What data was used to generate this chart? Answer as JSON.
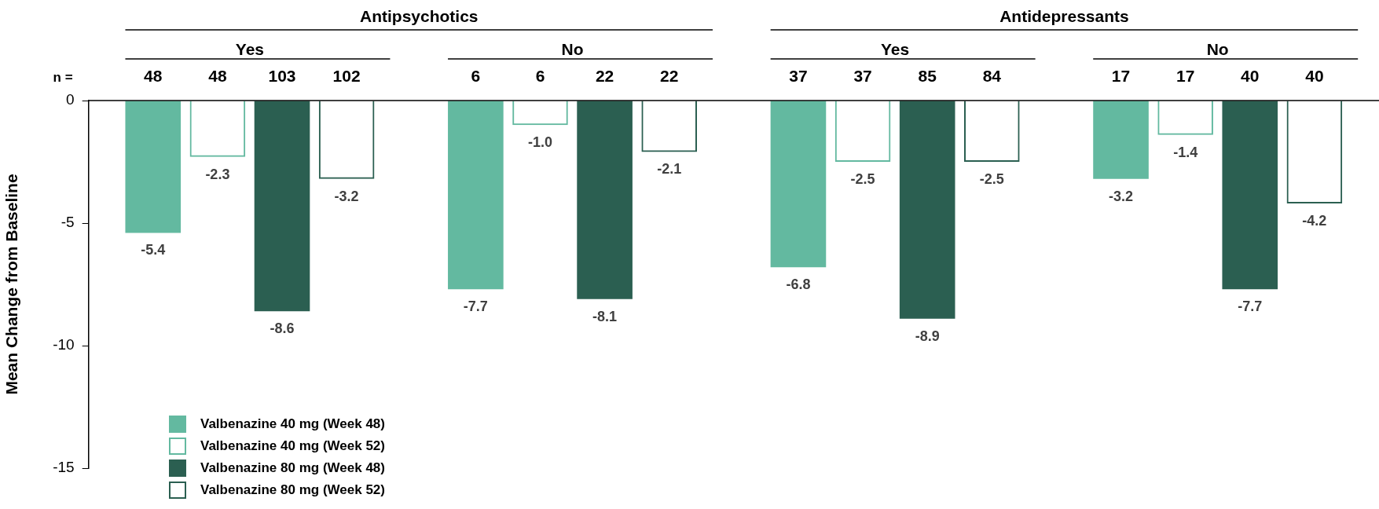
{
  "chart_data": {
    "type": "bar",
    "ylabel": "Mean Change from Baseline",
    "categories": [
      "Yes",
      "No",
      "Yes",
      "No"
    ],
    "series": [
      {
        "name": "Valbenazine 40 mg (Week 48)",
        "color": "#63b9a0",
        "values": [
          -5.4,
          -7.7,
          -6.8,
          -3.2
        ],
        "value_labels": [
          "-5.4",
          "-7.7",
          "-6.8",
          "-3.2"
        ]
      },
      {
        "name": "Valbenazine 40 mg (Week 52)",
        "color": "#63b9a0",
        "values": [
          -2.3,
          -1.0,
          -2.5,
          -1.4
        ],
        "value_labels": [
          "-2.3",
          "-1.0",
          "-2.5",
          "-1.4"
        ]
      },
      {
        "name": "Valbenazine 80 mg (Week 48)",
        "color": "#2b5f51",
        "values": [
          -8.6,
          -8.1,
          -8.9,
          -7.7
        ],
        "value_labels": [
          "-8.6",
          "-8.1",
          "-8.9",
          "-7.7"
        ]
      },
      {
        "name": "Valbenazine 80 mg (Week 52)",
        "color": "#2b5f51",
        "values": [
          -3.2,
          -2.1,
          -2.5,
          -4.2
        ],
        "value_labels": [
          "-3.2",
          "-2.1",
          "-2.5",
          "-4.2"
        ]
      }
    ],
    "ylim": [
      -15,
      0
    ],
    "yticks": [
      -15,
      -10,
      -5,
      0
    ],
    "grid": false,
    "legend": "bottom left",
    "annotations": [
      "Antipsychotics",
      "Antidepressants",
      "n =",
      "48",
      "48",
      "103",
      "102",
      "6",
      "6",
      "22",
      "22",
      "37",
      "37",
      "85",
      "84",
      "17",
      "17",
      "40",
      "40"
    ]
  }
}
